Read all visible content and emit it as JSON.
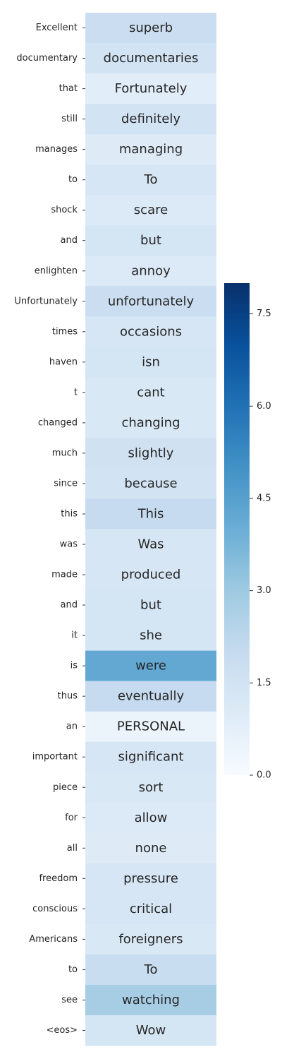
{
  "chart_data": {
    "type": "heatmap",
    "title": "",
    "xlabel": "",
    "ylabel": "",
    "rows": [
      {
        "label": "Excellent",
        "token": "superb",
        "value": 1.8
      },
      {
        "label": "documentary",
        "token": "documentaries",
        "value": 1.5
      },
      {
        "label": "that",
        "token": "Fortunately",
        "value": 0.9
      },
      {
        "label": "still",
        "token": "definitely",
        "value": 1.5
      },
      {
        "label": "manages",
        "token": "managing",
        "value": 1.0
      },
      {
        "label": "to",
        "token": "To",
        "value": 1.3
      },
      {
        "label": "shock",
        "token": "scare",
        "value": 1.1
      },
      {
        "label": "and",
        "token": "but",
        "value": 1.4
      },
      {
        "label": "enlighten",
        "token": "annoy",
        "value": 1.1
      },
      {
        "label": "Unfortunately",
        "token": "unfortunately",
        "value": 1.8
      },
      {
        "label": "times",
        "token": "occasions",
        "value": 1.3
      },
      {
        "label": "haven",
        "token": "isn",
        "value": 1.4
      },
      {
        "label": "t",
        "token": "cant",
        "value": 1.2
      },
      {
        "label": "changed",
        "token": "changing",
        "value": 1.2
      },
      {
        "label": "much",
        "token": "slightly",
        "value": 1.6
      },
      {
        "label": "since",
        "token": "because",
        "value": 1.5
      },
      {
        "label": "this",
        "token": "This",
        "value": 2.0
      },
      {
        "label": "was",
        "token": "Was",
        "value": 1.3
      },
      {
        "label": "made",
        "token": "produced",
        "value": 1.3
      },
      {
        "label": "and",
        "token": "but",
        "value": 1.4
      },
      {
        "label": "it",
        "token": "she",
        "value": 1.4
      },
      {
        "label": "is",
        "token": "were",
        "value": 4.2
      },
      {
        "label": "thus",
        "token": "eventually",
        "value": 2.0
      },
      {
        "label": "an",
        "token": "PERSONAL",
        "value": 0.5
      },
      {
        "label": "important",
        "token": "significant",
        "value": 1.3
      },
      {
        "label": "piece",
        "token": "sort",
        "value": 1.2
      },
      {
        "label": "for",
        "token": "allow",
        "value": 1.1
      },
      {
        "label": "all",
        "token": "none",
        "value": 1.0
      },
      {
        "label": "freedom",
        "token": "pressure",
        "value": 1.3
      },
      {
        "label": "conscious",
        "token": "critical",
        "value": 1.3
      },
      {
        "label": "Americans",
        "token": "foreigners",
        "value": 1.2
      },
      {
        "label": "to",
        "token": "To",
        "value": 1.9
      },
      {
        "label": "see",
        "token": "watching",
        "value": 2.8
      },
      {
        "label": "<eos>",
        "token": "Wow",
        "value": 1.4
      }
    ],
    "colorbar": {
      "min": 0.0,
      "max": 8.0,
      "ticks": [
        0.0,
        1.5,
        3.0,
        4.5,
        6.0,
        7.5
      ],
      "tick_labels": [
        "0.0",
        "1.5",
        "3.0",
        "4.5",
        "6.0",
        "7.5"
      ],
      "colormap": "Blues"
    }
  }
}
